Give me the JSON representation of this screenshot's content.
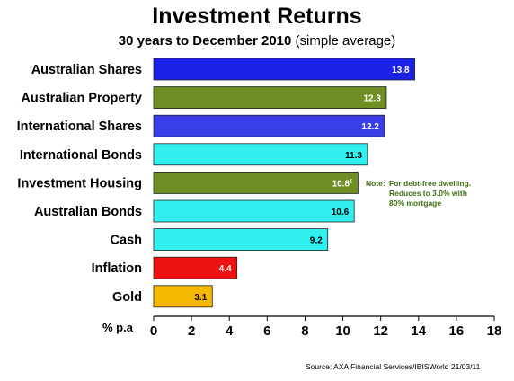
{
  "title": "Investment Returns",
  "subtitle_bold": "30 years to December 2010",
  "subtitle_rest": " (simple average)",
  "note": {
    "label": "Note:",
    "line1": "For debt-free dwelling.",
    "line2": "Reduces to 3.0% with",
    "line3": "80% mortgage"
  },
  "source": "Source: AXA Financial Services/IBISWorld 21/03/11",
  "chart_data": {
    "type": "bar",
    "orientation": "horizontal",
    "categories": [
      "Australian Shares",
      "Australian Property",
      "International Shares",
      "International Bonds",
      "Investment Housing",
      "Australian Bonds",
      "Cash",
      "Inflation",
      "Gold"
    ],
    "values": [
      13.8,
      12.3,
      12.2,
      11.3,
      10.8,
      10.6,
      9.2,
      4.4,
      3.1
    ],
    "value_labels": [
      "13.8",
      "12.3",
      "12.2",
      "11.3",
      "10.8",
      "10.6",
      "9.2",
      "4.4",
      "3.1"
    ],
    "value_superscripts": [
      "",
      "",
      "",
      "",
      "1",
      "",
      "",
      "",
      ""
    ],
    "colors": [
      "#1d22e8",
      "#6f8f24",
      "#3a3ee6",
      "#33f0f0",
      "#6f8f24",
      "#33f0f0",
      "#33f0f0",
      "#ee1111",
      "#f5b800"
    ],
    "label_colors": [
      "#ffffff",
      "#ffffff",
      "#ffffff",
      "#000000",
      "#ffffff",
      "#000000",
      "#000000",
      "#ffffff",
      "#000000"
    ],
    "xlabel": "% p.a",
    "xlim": [
      0,
      18
    ],
    "xticks": [
      0,
      2,
      4,
      6,
      8,
      10,
      12,
      14,
      16,
      18
    ],
    "grid": false
  }
}
